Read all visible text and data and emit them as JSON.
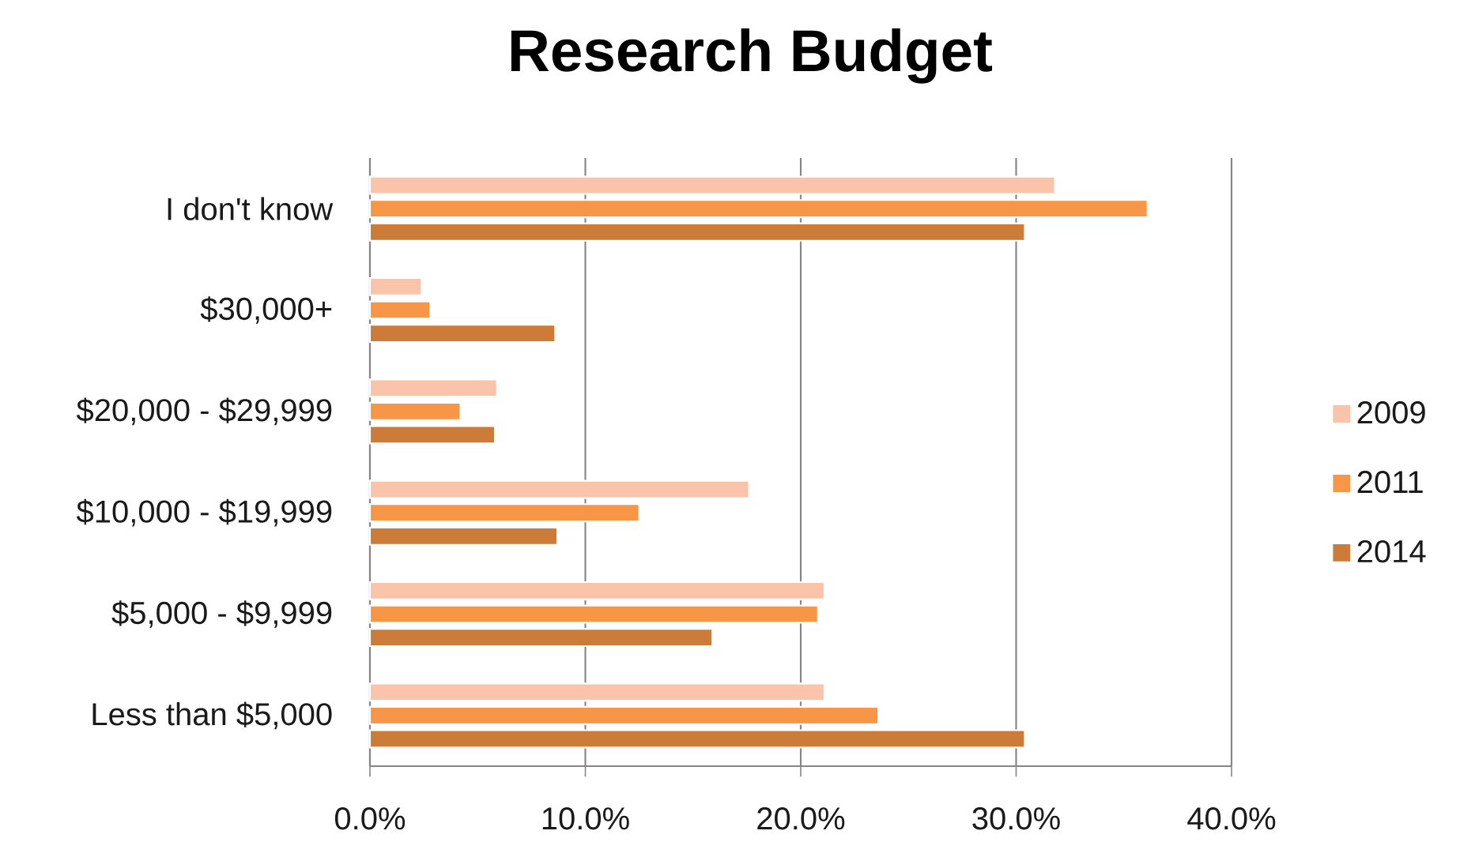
{
  "chart_data": {
    "type": "bar",
    "orientation": "horizontal",
    "title": "Research Budget",
    "categories": [
      "I don't know",
      "$30,000+",
      "$20,000 - $29,999",
      "$10,000 - $19,999",
      "$5,000 - $9,999",
      "Less than $5,000"
    ],
    "series": [
      {
        "name": "2009",
        "color": "#f9c4a9",
        "values": [
          31.8,
          2.4,
          5.9,
          17.6,
          21.1,
          21.1
        ]
      },
      {
        "name": "2011",
        "color": "#f79646",
        "values": [
          36.1,
          2.8,
          4.2,
          12.5,
          20.8,
          23.6
        ]
      },
      {
        "name": "2014",
        "color": "#cc7b38",
        "values": [
          30.4,
          8.6,
          5.8,
          8.7,
          15.9,
          30.4
        ]
      }
    ],
    "xlim": [
      0,
      40
    ],
    "xticks": [
      {
        "value": 0,
        "label": "0.0%"
      },
      {
        "value": 10,
        "label": "10.0%"
      },
      {
        "value": 20,
        "label": "20.0%"
      },
      {
        "value": 30,
        "label": "30.0%"
      },
      {
        "value": 40,
        "label": "40.0%"
      }
    ],
    "grid": "x",
    "legend": "right"
  }
}
